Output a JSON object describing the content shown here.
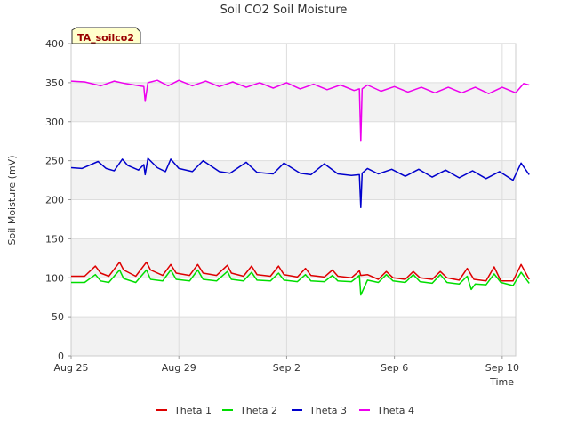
{
  "chart_data": {
    "type": "line",
    "title": "Soil CO2 Soil Moisture",
    "xlabel": "Time",
    "ylabel": "Soil Moisture (mV)",
    "badge": "TA_soilco2",
    "xlim": [
      0,
      16.5
    ],
    "ylim": [
      0,
      400
    ],
    "yticks": [
      0,
      50,
      100,
      150,
      200,
      250,
      300,
      350,
      400
    ],
    "xticks": [
      {
        "label": "Aug 25",
        "x": 0
      },
      {
        "label": "Aug 29",
        "x": 4
      },
      {
        "label": "Sep 2",
        "x": 8
      },
      {
        "label": "Sep 6",
        "x": 12
      },
      {
        "label": "Sep 10",
        "x": 16
      }
    ],
    "grid": true,
    "legend_position": "bottom",
    "series": [
      {
        "name": "Theta 1",
        "color": "#dd0000",
        "x": [
          0,
          0.5,
          0.9,
          1.1,
          1.4,
          1.8,
          1.95,
          2.4,
          2.8,
          2.95,
          3.4,
          3.7,
          3.9,
          4.4,
          4.7,
          4.9,
          5.4,
          5.8,
          5.95,
          6.4,
          6.7,
          6.9,
          7.4,
          7.7,
          7.9,
          8.4,
          8.7,
          8.9,
          9.4,
          9.7,
          9.9,
          10.4,
          10.7,
          10.75,
          11.0,
          11.4,
          11.7,
          11.95,
          12.4,
          12.7,
          12.95,
          13.4,
          13.7,
          13.95,
          14.4,
          14.7,
          14.95,
          15.4,
          15.7,
          15.95,
          16.4,
          16.7,
          17.0
        ],
        "values": [
          102,
          102,
          115,
          106,
          102,
          120,
          110,
          102,
          120,
          110,
          103,
          117,
          106,
          103,
          117,
          106,
          103,
          116,
          106,
          102,
          115,
          104,
          102,
          115,
          104,
          101,
          112,
          103,
          101,
          110,
          102,
          100,
          109,
          103,
          104,
          98,
          108,
          100,
          98,
          108,
          100,
          98,
          108,
          100,
          97,
          112,
          98,
          96,
          114,
          96,
          96,
          117,
          98
        ]
      },
      {
        "name": "Theta 2",
        "color": "#00dd00",
        "x": [
          0,
          0.5,
          0.9,
          1.1,
          1.4,
          1.8,
          1.95,
          2.4,
          2.8,
          2.95,
          3.4,
          3.7,
          3.9,
          4.4,
          4.7,
          4.9,
          5.4,
          5.8,
          5.95,
          6.4,
          6.7,
          6.9,
          7.4,
          7.7,
          7.9,
          8.4,
          8.7,
          8.9,
          9.4,
          9.7,
          9.9,
          10.4,
          10.7,
          10.75,
          11.0,
          11.4,
          11.7,
          11.95,
          12.4,
          12.7,
          12.95,
          13.4,
          13.7,
          13.95,
          14.4,
          14.7,
          14.85,
          15.0,
          15.4,
          15.7,
          15.95,
          16.4,
          16.7,
          17.0
        ],
        "values": [
          94,
          94,
          104,
          96,
          94,
          110,
          99,
          94,
          110,
          98,
          96,
          110,
          98,
          96,
          110,
          98,
          96,
          108,
          98,
          96,
          107,
          97,
          96,
          106,
          97,
          95,
          104,
          96,
          95,
          103,
          96,
          95,
          103,
          78,
          97,
          94,
          104,
          96,
          94,
          104,
          95,
          93,
          104,
          94,
          92,
          102,
          85,
          92,
          91,
          105,
          94,
          90,
          107,
          93
        ]
      },
      {
        "name": "Theta 3",
        "color": "#0000cc",
        "x": [
          0,
          0.4,
          1.0,
          1.3,
          1.6,
          1.9,
          2.1,
          2.5,
          2.7,
          2.75,
          2.85,
          3.2,
          3.5,
          3.7,
          4.0,
          4.5,
          4.9,
          5.5,
          5.9,
          6.5,
          6.9,
          7.5,
          7.9,
          8.5,
          8.9,
          9.4,
          9.9,
          10.4,
          10.7,
          10.75,
          10.8,
          11.0,
          11.4,
          11.9,
          12.4,
          12.9,
          13.4,
          13.9,
          14.4,
          14.9,
          15.4,
          15.9,
          16.4,
          16.7,
          17.0
        ],
        "values": [
          241,
          240,
          249,
          240,
          237,
          252,
          244,
          238,
          245,
          232,
          253,
          241,
          236,
          252,
          240,
          236,
          250,
          236,
          234,
          248,
          235,
          233,
          247,
          234,
          232,
          246,
          233,
          231,
          232,
          190,
          234,
          240,
          233,
          239,
          230,
          239,
          229,
          238,
          228,
          237,
          227,
          236,
          225,
          247,
          232
        ]
      },
      {
        "name": "Theta 4",
        "color": "#ee00ee",
        "x": [
          0,
          0.5,
          1.1,
          1.6,
          2.0,
          2.7,
          2.75,
          2.85,
          3.2,
          3.6,
          4.0,
          4.5,
          5.0,
          5.5,
          6.0,
          6.5,
          7.0,
          7.5,
          8.0,
          8.5,
          9.0,
          9.5,
          10.0,
          10.5,
          10.7,
          10.75,
          10.8,
          11.0,
          11.5,
          12.0,
          12.5,
          13.0,
          13.5,
          14.0,
          14.5,
          15.0,
          15.5,
          16.0,
          16.5,
          16.8,
          17.0
        ],
        "values": [
          352,
          351,
          346,
          352,
          349,
          345,
          326,
          350,
          353,
          346,
          353,
          346,
          352,
          345,
          351,
          344,
          350,
          343,
          350,
          342,
          348,
          341,
          347,
          340,
          342,
          275,
          342,
          347,
          339,
          345,
          338,
          344,
          337,
          344,
          337,
          344,
          336,
          344,
          337,
          349,
          347
        ]
      }
    ]
  }
}
